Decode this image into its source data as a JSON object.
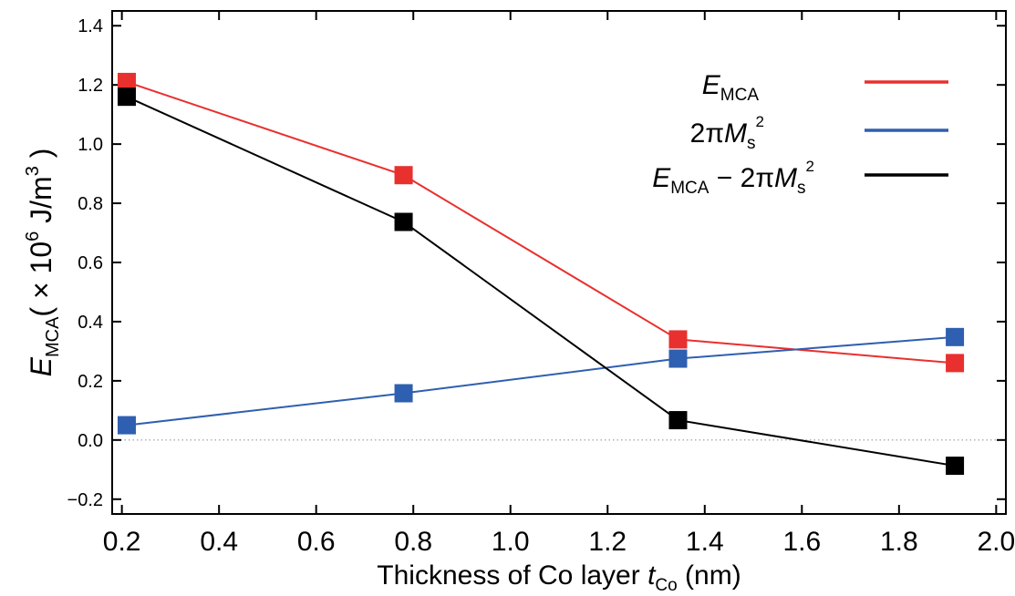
{
  "chart_data": {
    "type": "line",
    "xlabel": {
      "text": "Thickness of Co layer ",
      "var": "t",
      "sub": "Co",
      "unit": " (nm)"
    },
    "ylabel": {
      "var": "E",
      "sub": "MCA",
      "unit_open": "( × 10",
      "unit_exp": "6",
      "unit_mid": " J/m",
      "unit_exp2": "3",
      "unit_close": " )"
    },
    "xlim": [
      0.18,
      2.02
    ],
    "ylim": [
      -0.25,
      1.45
    ],
    "xticks": [
      0.2,
      0.4,
      0.6,
      0.8,
      1.0,
      1.2,
      1.4,
      1.6,
      1.8,
      2.0
    ],
    "xtick_labels": [
      "0.2",
      "0.4",
      "0.6",
      "0.8",
      "1.0",
      "1.2",
      "1.4",
      "1.6",
      "1.8",
      "2.0"
    ],
    "yticks": [
      -0.2,
      0.0,
      0.2,
      0.4,
      0.6,
      0.8,
      1.0,
      1.2,
      1.4
    ],
    "ytick_labels": [
      "−0.2",
      "0.0",
      "0.2",
      "0.4",
      "0.6",
      "0.8",
      "1.0",
      "1.2",
      "1.4"
    ],
    "zero_line": true,
    "grid": false,
    "legend_position": "top-right",
    "x": [
      0.21,
      0.78,
      1.345,
      1.915
    ],
    "series": [
      {
        "key": "emca",
        "legend": {
          "var": "E",
          "sub": "MCA",
          "rest": ""
        },
        "color": "#e8302e",
        "values": [
          1.21,
          0.895,
          0.34,
          0.26
        ]
      },
      {
        "key": "ms",
        "legend": {
          "pre": "2π",
          "var": "M",
          "sub": "s",
          "sup": "2"
        },
        "color": "#2f5fb0",
        "values": [
          0.05,
          0.158,
          0.275,
          0.348
        ]
      },
      {
        "key": "diff",
        "legend": {
          "var": "E",
          "sub": "MCA",
          "mid": " − 2π",
          "var2": "M",
          "sub2": "s",
          "sup": "2"
        },
        "color": "#000000",
        "values": [
          1.16,
          0.737,
          0.067,
          -0.087
        ]
      }
    ]
  }
}
